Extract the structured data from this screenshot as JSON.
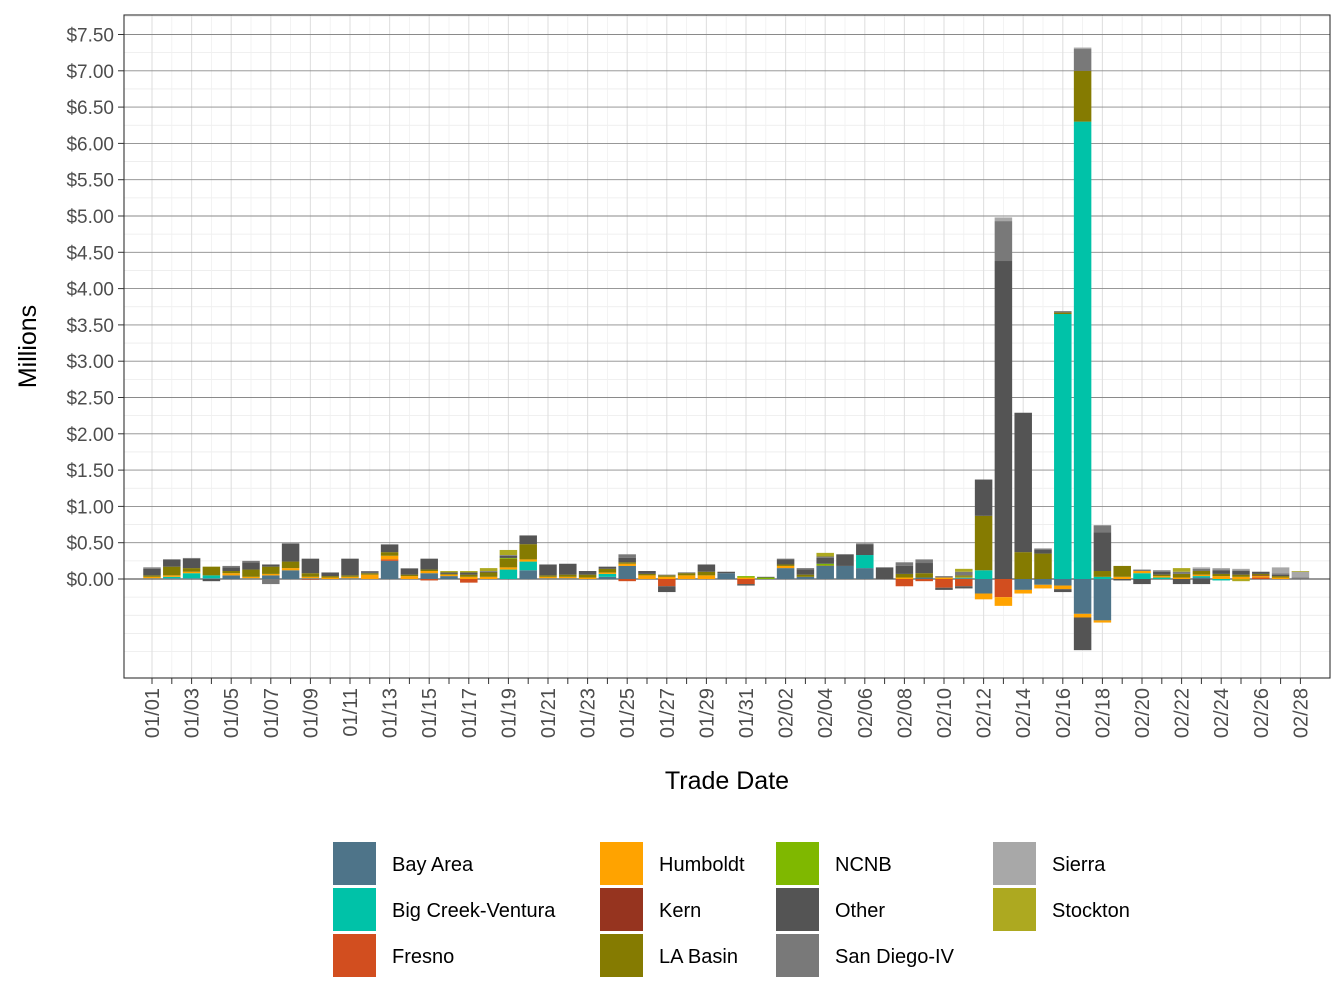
{
  "chart_data": {
    "type": "bar",
    "stacked": true,
    "title": "",
    "xlabel": "Trade Date",
    "ylabel": "Millions",
    "ylim": [
      -1.0,
      7.75
    ],
    "yticks": [
      "$0.00",
      "$0.50",
      "$1.00",
      "$1.50",
      "$2.00",
      "$2.50",
      "$3.00",
      "$3.50",
      "$4.00",
      "$4.50",
      "$5.00",
      "$5.50",
      "$6.00",
      "$6.50",
      "$7.00",
      "$7.50"
    ],
    "ytick_values": [
      0,
      0.5,
      1,
      1.5,
      2,
      2.5,
      3,
      3.5,
      4,
      4.5,
      5,
      5.5,
      6,
      6.5,
      7,
      7.5
    ],
    "grid": true,
    "legend_position": "bottom",
    "categories": [
      "01/01",
      "01/02",
      "01/03",
      "01/04",
      "01/05",
      "01/06",
      "01/07",
      "01/08",
      "01/09",
      "01/10",
      "01/11",
      "01/12",
      "01/13",
      "01/14",
      "01/15",
      "01/16",
      "01/17",
      "01/18",
      "01/19",
      "01/20",
      "01/21",
      "01/22",
      "01/23",
      "01/24",
      "01/25",
      "01/26",
      "01/27",
      "01/28",
      "01/29",
      "01/30",
      "01/31",
      "02/01",
      "02/02",
      "02/03",
      "02/04",
      "02/05",
      "02/06",
      "02/07",
      "02/08",
      "02/09",
      "02/10",
      "02/11",
      "02/12",
      "02/13",
      "02/14",
      "02/15",
      "02/16",
      "02/17",
      "02/18",
      "02/19",
      "02/20",
      "02/21",
      "02/22",
      "02/23",
      "02/24",
      "02/25",
      "02/26",
      "02/27",
      "02/28"
    ],
    "xtick_labels": [
      "01/01",
      "01/03",
      "01/05",
      "01/07",
      "01/09",
      "01/11",
      "01/13",
      "01/15",
      "01/17",
      "01/19",
      "01/21",
      "01/23",
      "01/25",
      "01/27",
      "01/29",
      "01/31",
      "02/02",
      "02/04",
      "02/06",
      "02/08",
      "02/10",
      "02/12",
      "02/14",
      "02/16",
      "02/18",
      "02/20",
      "02/22",
      "02/24",
      "02/26",
      "02/28"
    ],
    "series": [
      {
        "name": "Bay Area",
        "color": "#4E7489",
        "values": [
          0.01,
          0.01,
          0.01,
          0.01,
          0.05,
          0.01,
          0.05,
          0.12,
          0.01,
          0,
          0.01,
          0,
          0.25,
          0,
          0.08,
          0.04,
          0,
          0,
          0,
          0.12,
          0.01,
          0.01,
          0,
          0.03,
          0.18,
          0,
          0,
          0,
          0,
          0.08,
          0,
          0,
          0.15,
          0.03,
          0.18,
          0.18,
          0.15,
          0,
          0,
          0.02,
          0,
          0.01,
          -0.2,
          0,
          -0.15,
          -0.08,
          -0.09,
          -0.48,
          -0.57,
          0,
          0,
          0,
          0,
          0.02,
          0,
          0,
          0,
          0,
          0
        ]
      },
      {
        "name": "Big Creek-Ventura",
        "color": "#00C2A8",
        "values": [
          0,
          0.02,
          0.07,
          0.04,
          0,
          0,
          0,
          0,
          0,
          0,
          0,
          0,
          0,
          0,
          0,
          0,
          0,
          0,
          0.13,
          0.12,
          0,
          0,
          0,
          0.04,
          0,
          0,
          0,
          0,
          0,
          0,
          0,
          0,
          0,
          0,
          0,
          0,
          0.18,
          0,
          0,
          0,
          0,
          0.01,
          0.12,
          0,
          0,
          0,
          3.65,
          6.3,
          0.03,
          0,
          0.08,
          0.02,
          0,
          0.02,
          -0.02,
          0,
          0,
          0,
          0
        ]
      },
      {
        "name": "Fresno",
        "color": "#D24E1F",
        "values": [
          0,
          0,
          0,
          0,
          0,
          0,
          0,
          0,
          0,
          0,
          0,
          0,
          0.02,
          0,
          -0.02,
          0,
          -0.05,
          0,
          0,
          0,
          0,
          0,
          0,
          0,
          -0.03,
          0,
          -0.1,
          0,
          0,
          0,
          -0.07,
          0,
          0,
          0,
          0,
          0,
          0,
          0,
          -0.1,
          -0.03,
          -0.12,
          -0.1,
          0,
          -0.25,
          0,
          0,
          0,
          0,
          0,
          0,
          0,
          0,
          0,
          0,
          0,
          0,
          0.02,
          0,
          0
        ]
      },
      {
        "name": "Humboldt",
        "color": "#FFA300",
        "values": [
          0.02,
          0.02,
          0.02,
          0,
          0.03,
          0.02,
          0.02,
          0.03,
          0.02,
          0.02,
          0.02,
          0.06,
          0.05,
          0.04,
          0.03,
          0.02,
          0.03,
          0.03,
          0.03,
          0.03,
          0.02,
          0.02,
          0.02,
          0.02,
          0.03,
          0.05,
          0.03,
          0.05,
          0.05,
          0,
          0.02,
          0,
          0.03,
          0,
          0,
          0,
          0,
          0,
          0.02,
          0,
          0.02,
          0.01,
          -0.08,
          -0.12,
          -0.05,
          -0.05,
          -0.05,
          -0.05,
          -0.03,
          0.03,
          0.03,
          0.02,
          0.02,
          0.02,
          0.04,
          0.03,
          0.02,
          0.02,
          0
        ]
      },
      {
        "name": "Kern",
        "color": "#96341F",
        "values": [
          0,
          0,
          0,
          0,
          0,
          0,
          0,
          0,
          -0.01,
          0,
          0,
          0,
          0,
          0,
          0,
          0,
          0,
          0,
          0,
          0,
          0,
          0,
          0,
          0,
          0,
          0,
          0,
          0,
          0,
          0,
          0,
          0,
          0,
          0,
          0,
          0,
          0,
          0,
          0,
          0,
          0,
          0,
          0,
          0,
          0,
          0,
          0,
          0,
          0,
          0,
          0,
          0,
          0,
          0,
          0,
          0,
          0.01,
          0,
          0
        ]
      },
      {
        "name": "LA Basin",
        "color": "#857B01",
        "values": [
          0.02,
          0.12,
          0.05,
          0.12,
          0.03,
          0.1,
          0.1,
          0.09,
          0.05,
          0.02,
          0.02,
          0.02,
          0.05,
          0.02,
          0.02,
          0.01,
          0.03,
          0.06,
          0.12,
          0.21,
          0.02,
          0.03,
          0.04,
          0.05,
          0.02,
          0.02,
          0.02,
          0.03,
          0.05,
          0,
          0,
          0,
          0.02,
          0.03,
          0.01,
          0,
          0,
          0,
          0.05,
          0.06,
          0,
          0.02,
          0.75,
          0,
          0.37,
          0.35,
          0.02,
          0.7,
          0.08,
          0.15,
          0,
          0.02,
          0.05,
          0.05,
          0.03,
          0.03,
          0.02,
          0.02,
          0
        ]
      },
      {
        "name": "NCNB",
        "color": "#7FB800",
        "values": [
          0,
          0,
          0,
          0,
          0,
          0,
          0,
          0,
          0,
          0,
          0,
          0,
          0,
          0,
          0,
          0,
          0,
          0,
          0.01,
          0,
          0,
          0,
          0,
          0,
          0,
          0,
          0,
          0,
          0,
          0,
          0.02,
          0.02,
          0,
          0,
          0.02,
          0,
          0,
          0,
          0,
          0,
          0,
          0,
          0,
          0,
          0,
          0,
          0,
          0,
          0,
          0,
          0,
          0,
          0,
          0,
          0,
          0,
          0,
          0,
          0
        ]
      },
      {
        "name": "Other",
        "color": "#545454",
        "values": [
          0.09,
          0.1,
          0.13,
          -0.03,
          0.05,
          0.1,
          0.03,
          0.25,
          0.2,
          0.05,
          0.23,
          0.01,
          0.1,
          0.08,
          0.15,
          0.02,
          0.03,
          0.01,
          0.03,
          0.12,
          0.15,
          0.15,
          0.05,
          0.03,
          0.06,
          0.04,
          -0.08,
          0.01,
          0.1,
          0.02,
          -0.02,
          0.01,
          0.07,
          0.07,
          0.08,
          0.16,
          0.15,
          0.16,
          0.11,
          0.14,
          -0.03,
          -0.03,
          0.5,
          4.38,
          1.92,
          0.05,
          -0.04,
          -0.45,
          0.53,
          -0.02,
          -0.07,
          0.04,
          -0.07,
          -0.07,
          0.05,
          0.05,
          0.03,
          0.02,
          0
        ]
      },
      {
        "name": "San Diego-IV",
        "color": "#797979",
        "values": [
          0.02,
          0,
          0.01,
          0,
          0.02,
          0.02,
          -0.07,
          0,
          0,
          0,
          0,
          0.02,
          0.01,
          0.01,
          0,
          -0.01,
          0,
          0.01,
          0.01,
          0,
          0,
          0,
          0,
          0,
          0.05,
          0,
          0.01,
          0,
          0,
          0,
          0,
          0,
          0.01,
          0.02,
          0.02,
          0,
          0.01,
          0,
          0.05,
          0.05,
          0.02,
          0.05,
          0,
          0.55,
          0,
          0.02,
          0.02,
          0.3,
          0.1,
          0,
          0.02,
          0.02,
          0.03,
          0.03,
          0.01,
          0.01,
          0,
          0.02,
          0.02
        ]
      },
      {
        "name": "Sierra",
        "color": "#A8A8A8",
        "values": [
          0,
          0,
          0,
          0,
          0,
          0,
          0,
          0,
          0,
          0,
          0,
          0,
          0,
          0,
          0,
          0,
          0,
          0,
          0,
          0,
          0,
          0,
          0,
          0,
          0,
          0,
          0,
          0,
          0,
          0,
          0,
          0,
          0,
          0,
          0,
          0,
          0,
          0,
          0,
          0,
          0,
          0,
          0,
          0.05,
          0,
          0,
          0,
          0.02,
          0,
          0,
          0,
          0,
          0,
          0.02,
          0.02,
          0.02,
          0,
          0.08,
          0.08
        ]
      },
      {
        "name": "Stockton",
        "color": "#ADA920",
        "values": [
          0,
          0,
          0,
          0,
          0,
          0,
          0,
          0,
          0,
          0,
          0,
          0,
          0,
          0,
          0,
          0.02,
          0.02,
          0.04,
          0.07,
          0,
          0,
          0,
          0,
          0,
          0,
          0,
          0,
          0,
          0,
          0,
          0,
          0,
          0,
          0,
          0.05,
          0,
          0,
          0,
          0,
          0,
          0,
          0.04,
          0,
          0,
          0,
          0,
          0,
          0,
          0,
          0,
          0,
          0,
          0.05,
          0,
          0,
          -0.03,
          0,
          0,
          0.01
        ]
      }
    ]
  }
}
